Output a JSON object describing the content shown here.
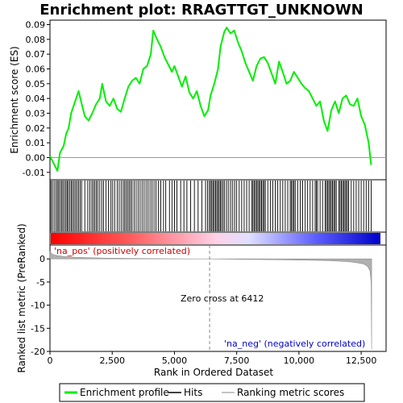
{
  "title": "Enrichment plot: RRAGTTGT_UNKNOWN",
  "colors": {
    "enrichment": "#00ee00",
    "hits": "#000000",
    "ranking": "#b0b0b0",
    "pos_label": "#cc0000",
    "neg_label": "#0000cc",
    "zero_line": "#999999"
  },
  "chart_data": [
    {
      "type": "line",
      "panel": "enrichment",
      "ylabel": "Enrichment score (ES)",
      "xlim": [
        0,
        13500
      ],
      "ylim": [
        -0.015,
        0.093
      ],
      "yticks": [
        -0.01,
        0.0,
        0.01,
        0.02,
        0.03,
        0.04,
        0.05,
        0.06,
        0.07,
        0.08,
        0.09
      ],
      "ytick_labels": [
        "-0.01",
        "0.00",
        "0.01",
        "0.02",
        "0.03",
        "0.04",
        "0.05",
        "0.06",
        "0.07",
        "0.08",
        "0.09"
      ],
      "series": [
        {
          "name": "Enrichment profile",
          "x": [
            0,
            150,
            300,
            400,
            550,
            650,
            750,
            850,
            950,
            1050,
            1150,
            1250,
            1400,
            1550,
            1700,
            1850,
            2000,
            2100,
            2250,
            2400,
            2550,
            2700,
            2850,
            3000,
            3150,
            3300,
            3450,
            3600,
            3750,
            3900,
            4050,
            4150,
            4300,
            4450,
            4600,
            4750,
            4900,
            5000,
            5150,
            5300,
            5450,
            5600,
            5750,
            5900,
            6050,
            6200,
            6350,
            6450,
            6600,
            6750,
            6850,
            7000,
            7100,
            7250,
            7400,
            7550,
            7700,
            7850,
            8000,
            8150,
            8300,
            8450,
            8600,
            8750,
            8900,
            9050,
            9200,
            9350,
            9500,
            9650,
            9800,
            9950,
            10100,
            10250,
            10400,
            10550,
            10700,
            10850,
            11000,
            11150,
            11300,
            11450,
            11600,
            11750,
            11900,
            12050,
            12200,
            12350,
            12500,
            12650,
            12800,
            12900
          ],
          "values": [
            0.001,
            -0.004,
            -0.009,
            0.003,
            0.008,
            0.016,
            0.02,
            0.03,
            0.035,
            0.04,
            0.045,
            0.038,
            0.028,
            0.025,
            0.03,
            0.036,
            0.04,
            0.05,
            0.038,
            0.035,
            0.04,
            0.033,
            0.031,
            0.04,
            0.048,
            0.052,
            0.054,
            0.05,
            0.06,
            0.062,
            0.07,
            0.086,
            0.08,
            0.075,
            0.068,
            0.063,
            0.058,
            0.062,
            0.055,
            0.048,
            0.055,
            0.044,
            0.04,
            0.045,
            0.035,
            0.028,
            0.032,
            0.042,
            0.05,
            0.06,
            0.075,
            0.085,
            0.088,
            0.084,
            0.086,
            0.078,
            0.072,
            0.064,
            0.058,
            0.052,
            0.062,
            0.067,
            0.068,
            0.064,
            0.057,
            0.05,
            0.065,
            0.058,
            0.05,
            0.052,
            0.058,
            0.054,
            0.05,
            0.047,
            0.045,
            0.04,
            0.035,
            0.038,
            0.025,
            0.018,
            0.032,
            0.038,
            0.03,
            0.04,
            0.042,
            0.036,
            0.035,
            0.04,
            0.028,
            0.022,
            0.01,
            -0.005
          ]
        }
      ]
    },
    {
      "type": "scatter",
      "panel": "hits",
      "name": "Hits",
      "xlim": [
        0,
        13500
      ],
      "x": [
        40,
        100,
        170,
        240,
        300,
        350,
        410,
        470,
        520,
        580,
        640,
        690,
        740,
        800,
        860,
        910,
        970,
        1030,
        1090,
        1150,
        1210,
        1270,
        1400,
        1520,
        1600,
        1680,
        1740,
        1800,
        1860,
        1920,
        2000,
        2080,
        2150,
        2250,
        2350,
        2450,
        2520,
        2600,
        2700,
        2780,
        2860,
        2940,
        3000,
        3060,
        3120,
        3180,
        3240,
        3300,
        3380,
        3460,
        3540,
        3620,
        3700,
        3780,
        3860,
        3940,
        4020,
        4100,
        4180,
        4260,
        4350,
        4450,
        4560,
        4650,
        4800,
        4900,
        5000,
        5100,
        5250,
        5380,
        5500,
        5650,
        5800,
        5950,
        6100,
        6250,
        6330,
        6400,
        6450,
        6500,
        6550,
        6600,
        6650,
        6700,
        6750,
        6800,
        6850,
        6900,
        6960,
        7020,
        7100,
        7180,
        7260,
        7340,
        7420,
        7500,
        7600,
        7700,
        7800,
        7900,
        8000,
        8100,
        8150,
        8200,
        8250,
        8300,
        8350,
        8400,
        8450,
        8500,
        8550,
        8600,
        8650,
        8750,
        8850,
        8950,
        9050,
        9150,
        9250,
        9350,
        9450,
        9550,
        9650,
        9700,
        9750,
        9800,
        9850,
        9950,
        10050,
        10150,
        10250,
        10350,
        10450,
        10550,
        10650,
        10700,
        10750,
        10850,
        10950,
        11050,
        11100,
        11150,
        11200,
        11250,
        11300,
        11350,
        11400,
        11450,
        11500,
        11600,
        11650,
        11700,
        11750,
        11800,
        11850,
        11900,
        11950,
        12000,
        12100,
        12200,
        12300,
        12400,
        12500,
        12600,
        12700,
        12800,
        12900
      ]
    },
    {
      "type": "area",
      "panel": "ranking",
      "name": "Ranking metric scores",
      "xlabel": "Rank in Ordered Dataset",
      "ylabel": "Ranked list metric (PreRanked)",
      "xlim": [
        0,
        13500
      ],
      "ylim": [
        -20,
        3
      ],
      "yticks": [
        0,
        -5,
        -10,
        -15,
        -20
      ],
      "ytick_labels": [
        "0",
        "-5",
        "-10",
        "-15",
        "-20"
      ],
      "xticks": [
        0,
        2500,
        5000,
        7500,
        10000,
        12500
      ],
      "xtick_labels": [
        "0",
        "2,500",
        "5,000",
        "7,500",
        "10,000",
        "12,500"
      ],
      "x": [
        0,
        100,
        300,
        600,
        1000,
        2000,
        3000,
        4000,
        5000,
        6000,
        6412,
        7000,
        8000,
        9000,
        10000,
        11000,
        11500,
        12000,
        12300,
        12600,
        12750,
        12850,
        12900,
        12920
      ],
      "values": [
        1.5,
        1.0,
        0.7,
        0.5,
        0.35,
        0.2,
        0.12,
        0.07,
        0.04,
        0.01,
        0.0,
        -0.05,
        -0.1,
        -0.18,
        -0.25,
        -0.35,
        -0.45,
        -0.6,
        -0.8,
        -1.1,
        -1.6,
        -2.5,
        -5.0,
        -19.5
      ],
      "annotations": {
        "zero_cross": "Zero cross at 6412",
        "pos": "'na_pos' (positively correlated)",
        "neg": "'na_neg' (negatively correlated)"
      },
      "zero_cross": 6412
    }
  ],
  "legend": {
    "items": [
      {
        "label": "Enrichment profile",
        "color": "#00ee00"
      },
      {
        "label": "Hits",
        "color": "#000000"
      },
      {
        "label": "Ranking metric scores",
        "color": "#b0b0b0"
      }
    ]
  }
}
